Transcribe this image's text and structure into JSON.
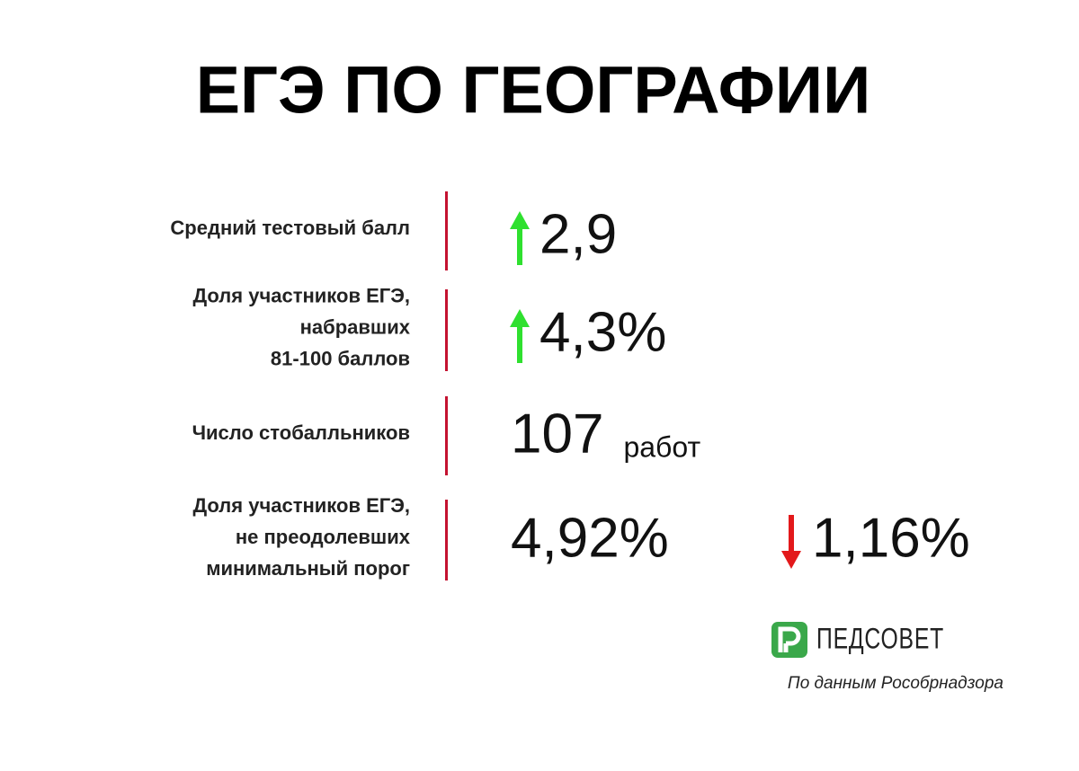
{
  "title": "ЕГЭ ПО ГЕОГРАФИИ",
  "rows": [
    {
      "label": [
        "Средний тестовый балл"
      ],
      "value": "2,9",
      "trend": "up"
    },
    {
      "label": [
        "Доля участников ЕГЭ,",
        "набравших",
        "81-100 баллов"
      ],
      "value": "4,3%",
      "trend": "up"
    },
    {
      "label": [
        "Число стобалльников"
      ],
      "value": "107",
      "unit": "работ"
    },
    {
      "label": [
        "Доля участников ЕГЭ,",
        "не преодолевших",
        "минимальный порог"
      ],
      "value": "4,92%",
      "change": {
        "value": "1,16%",
        "trend": "down"
      }
    }
  ],
  "brand": "ПЕДСОВЕТ",
  "source": "По данным Рособрнадзора"
}
